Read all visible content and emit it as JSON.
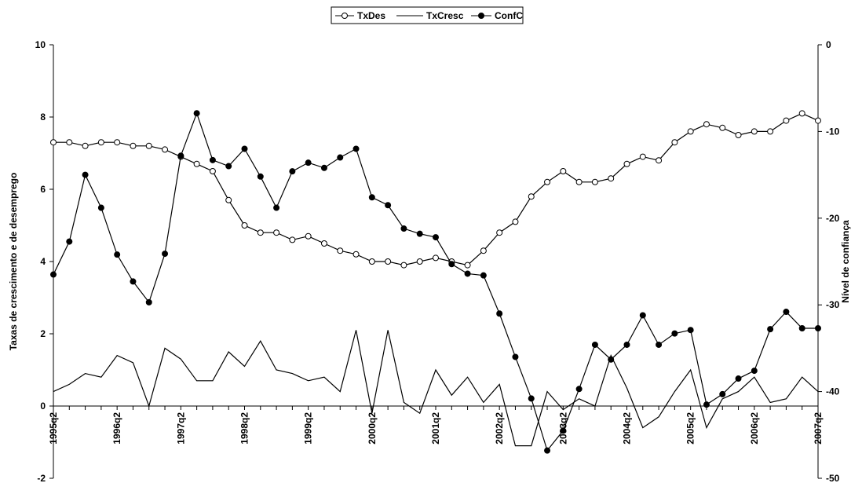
{
  "chart_data": {
    "type": "line",
    "xlabel": "",
    "ylabel": "Taxas de crescimento e de desemprego",
    "y2label": "Nível de confiança",
    "ylim": [
      -2,
      10
    ],
    "y2lim": [
      -50,
      0
    ],
    "yticks": [
      "-2",
      "0",
      "2",
      "4",
      "6",
      "8",
      "10"
    ],
    "y2ticks": [
      "-50",
      "-40",
      "-30",
      "-20",
      "-10",
      "0"
    ],
    "grid": false,
    "legend_position": "top-center",
    "categories": [
      "1995q2",
      "1995q3",
      "1995q4",
      "1996q1",
      "1996q2",
      "1996q3",
      "1996q4",
      "1997q1",
      "1997q2",
      "1997q3",
      "1997q4",
      "1998q1",
      "1998q2",
      "1998q3",
      "1998q4",
      "1999q1",
      "1999q2",
      "1999q3",
      "1999q4",
      "2000q1",
      "2000q2",
      "2000q3",
      "2000q4",
      "2001q1",
      "2001q2",
      "2001q3",
      "2001q4",
      "2002q1",
      "2002q2",
      "2002q3",
      "2002q4",
      "2003q1",
      "2003q2",
      "2003q3",
      "2003q4",
      "2004q1",
      "2004q2",
      "2004q3",
      "2004q4",
      "2005q1",
      "2005q2",
      "2005q3",
      "2005q4",
      "2006q1",
      "2006q2",
      "2006q3",
      "2006q4",
      "2007q1",
      "2007q2"
    ],
    "tick_labels": [
      "1995q2",
      "1996q2",
      "1997q2",
      "1998q2",
      "1999q2",
      "2000q2",
      "2001q2",
      "2002q2",
      "2003q2",
      "2004q2",
      "2005q2",
      "2006q2",
      "2007q2"
    ],
    "series": [
      {
        "name": "TxDes",
        "axis": "left",
        "marker": "open-circle",
        "values": [
          7.3,
          7.3,
          7.2,
          7.3,
          7.3,
          7.2,
          7.2,
          7.1,
          6.9,
          6.7,
          6.5,
          5.7,
          5.0,
          4.8,
          4.8,
          4.6,
          4.7,
          4.5,
          4.3,
          4.2,
          4.0,
          4.0,
          3.9,
          4.0,
          4.1,
          4.0,
          3.9,
          4.3,
          4.8,
          5.1,
          5.8,
          6.2,
          6.5,
          6.2,
          6.2,
          6.3,
          6.7,
          6.9,
          6.8,
          7.3,
          7.6,
          7.8,
          7.7,
          7.5,
          7.6,
          7.6,
          7.9,
          8.1,
          7.9
        ]
      },
      {
        "name": "TxCresc",
        "axis": "left",
        "marker": "none",
        "values": [
          0.4,
          0.6,
          0.9,
          0.8,
          1.4,
          1.2,
          0.0,
          1.6,
          1.3,
          0.7,
          0.7,
          1.5,
          1.1,
          1.8,
          1.0,
          0.9,
          0.7,
          0.8,
          0.4,
          2.1,
          -0.2,
          2.1,
          0.1,
          -0.2,
          1.0,
          0.3,
          0.8,
          0.1,
          0.6,
          -1.1,
          -1.1,
          0.4,
          -0.1,
          0.2,
          0.0,
          1.4,
          0.5,
          -0.6,
          -0.3,
          0.4,
          1.0,
          -0.6,
          0.2,
          0.4,
          0.8,
          0.1,
          0.2,
          0.8,
          0.4
        ]
      },
      {
        "name": "ConfC",
        "axis": "right",
        "marker": "filled-circle",
        "values": [
          -26.5,
          -22.7,
          -15.0,
          -18.8,
          -24.2,
          -27.3,
          -29.7,
          -24.1,
          -12.8,
          -7.9,
          -13.3,
          -14.0,
          -12.0,
          -15.2,
          -18.8,
          -14.6,
          -13.6,
          -14.2,
          -13.0,
          -12.0,
          -17.6,
          -18.5,
          -21.2,
          -21.8,
          -22.2,
          -25.3,
          -26.4,
          -26.6,
          -31.0,
          -36.0,
          -40.8,
          -46.8,
          -44.5,
          -39.7,
          -34.6,
          -36.3,
          -34.6,
          -31.2,
          -34.6,
          -33.3,
          -32.9,
          -41.5,
          -40.3,
          -38.5,
          -37.6,
          -32.8,
          -30.8,
          -32.7,
          -32.7
        ]
      }
    ]
  }
}
